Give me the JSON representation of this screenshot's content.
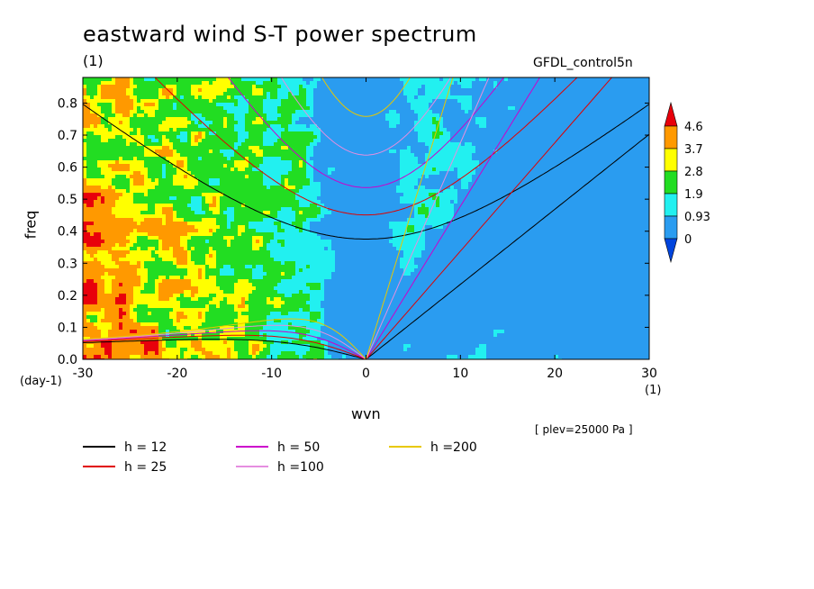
{
  "chart_data": {
    "type": "heatmap",
    "title": "eastward wind S-T power spectrum",
    "subtitle": "(1)",
    "model_label": "GFDL_control5n",
    "xlabel": "wvn",
    "ylabel": "freq",
    "x_unit": "(1)",
    "y_unit": "(day-1)",
    "annotation": "[ plev=25000 Pa ]",
    "xlim": [
      -30,
      30
    ],
    "ylim": [
      0,
      0.88
    ],
    "x_ticks": [
      "-30",
      "-20",
      "-10",
      "0",
      "10",
      "20",
      "30"
    ],
    "x_tick_values": [
      -30,
      -20,
      -10,
      0,
      10,
      20,
      30
    ],
    "y_ticks": [
      "0.0",
      "0.1",
      "0.2",
      "0.3",
      "0.4",
      "0.5",
      "0.6",
      "0.7",
      "0.8"
    ],
    "y_tick_values": [
      0,
      0.1,
      0.2,
      0.3,
      0.4,
      0.5,
      0.6,
      0.7,
      0.8
    ],
    "colorbar": {
      "levels": [
        "4.6",
        "3.7",
        "2.8",
        "1.9",
        "0.93",
        "0"
      ],
      "colors": [
        "#e8000b",
        "#ff9900",
        "#ffff00",
        "#22dd22",
        "#22f0f0",
        "#2a9cf0",
        "#0044dd"
      ]
    },
    "dispersion_curves": [
      {
        "name": "h = 12",
        "h": 12,
        "color": "#000000"
      },
      {
        "name": "h = 25",
        "h": 25,
        "color": "#e00000"
      },
      {
        "name": "h = 50",
        "h": 50,
        "color": "#cc00cc"
      },
      {
        "name": "h =100",
        "h": 100,
        "color": "#e58ee0"
      },
      {
        "name": "h =200",
        "h": 200,
        "color": "#e8c800"
      }
    ]
  }
}
